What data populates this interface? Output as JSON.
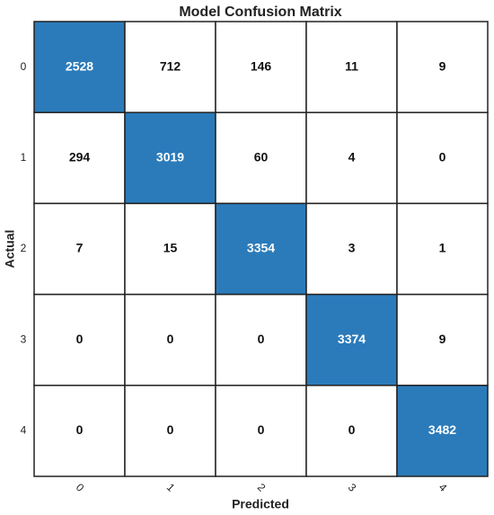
{
  "chart_data": {
    "type": "heatmap",
    "title": "Model Confusion Matrix",
    "xlabel": "Predicted",
    "ylabel": "Actual",
    "x_categories": [
      "0",
      "1",
      "2",
      "3",
      "4"
    ],
    "y_categories": [
      "0",
      "1",
      "2",
      "3",
      "4"
    ],
    "values": [
      [
        2528,
        712,
        146,
        11,
        9
      ],
      [
        294,
        3019,
        60,
        4,
        0
      ],
      [
        7,
        15,
        3354,
        3,
        1
      ],
      [
        0,
        0,
        0,
        3374,
        9
      ],
      [
        0,
        0,
        0,
        0,
        3482
      ]
    ],
    "highlight": "diagonal",
    "highlight_color": "#2b7bba",
    "color": "#ffffff"
  }
}
